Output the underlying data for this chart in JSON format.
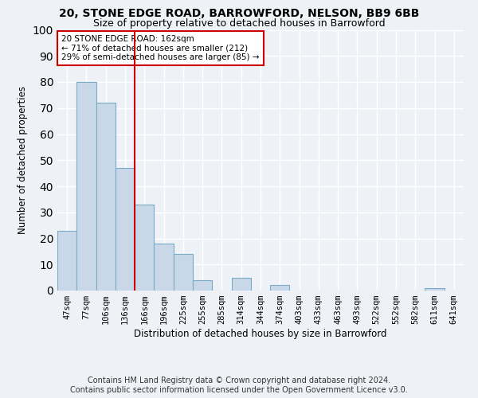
{
  "title": "20, STONE EDGE ROAD, BARROWFORD, NELSON, BB9 6BB",
  "subtitle": "Size of property relative to detached houses in Barrowford",
  "xlabel": "Distribution of detached houses by size in Barrowford",
  "ylabel": "Number of detached properties",
  "categories": [
    "47sqm",
    "77sqm",
    "106sqm",
    "136sqm",
    "166sqm",
    "196sqm",
    "225sqm",
    "255sqm",
    "285sqm",
    "314sqm",
    "344sqm",
    "374sqm",
    "403sqm",
    "433sqm",
    "463sqm",
    "493sqm",
    "522sqm",
    "552sqm",
    "582sqm",
    "611sqm",
    "641sqm"
  ],
  "values": [
    23,
    80,
    72,
    47,
    33,
    18,
    14,
    4,
    0,
    5,
    0,
    2,
    0,
    0,
    0,
    0,
    0,
    0,
    0,
    1,
    0
  ],
  "bar_color": "#c8d8e8",
  "bar_edge_color": "#7aaac8",
  "marker_index": 3,
  "marker_color": "#cc0000",
  "annotation_text": "20 STONE EDGE ROAD: 162sqm\n← 71% of detached houses are smaller (212)\n29% of semi-detached houses are larger (85) →",
  "annotation_box_color": "#ffffff",
  "annotation_box_edge": "#cc0000",
  "footer_text": "Contains HM Land Registry data © Crown copyright and database right 2024.\nContains public sector information licensed under the Open Government Licence v3.0.",
  "ylim": [
    0,
    100
  ],
  "bg_color": "#eef2f7",
  "plot_bg_color": "#eef2f7",
  "grid_color": "#ffffff",
  "title_fontsize": 10,
  "subtitle_fontsize": 9,
  "axis_label_fontsize": 8.5,
  "tick_fontsize": 7.5,
  "footer_fontsize": 7
}
